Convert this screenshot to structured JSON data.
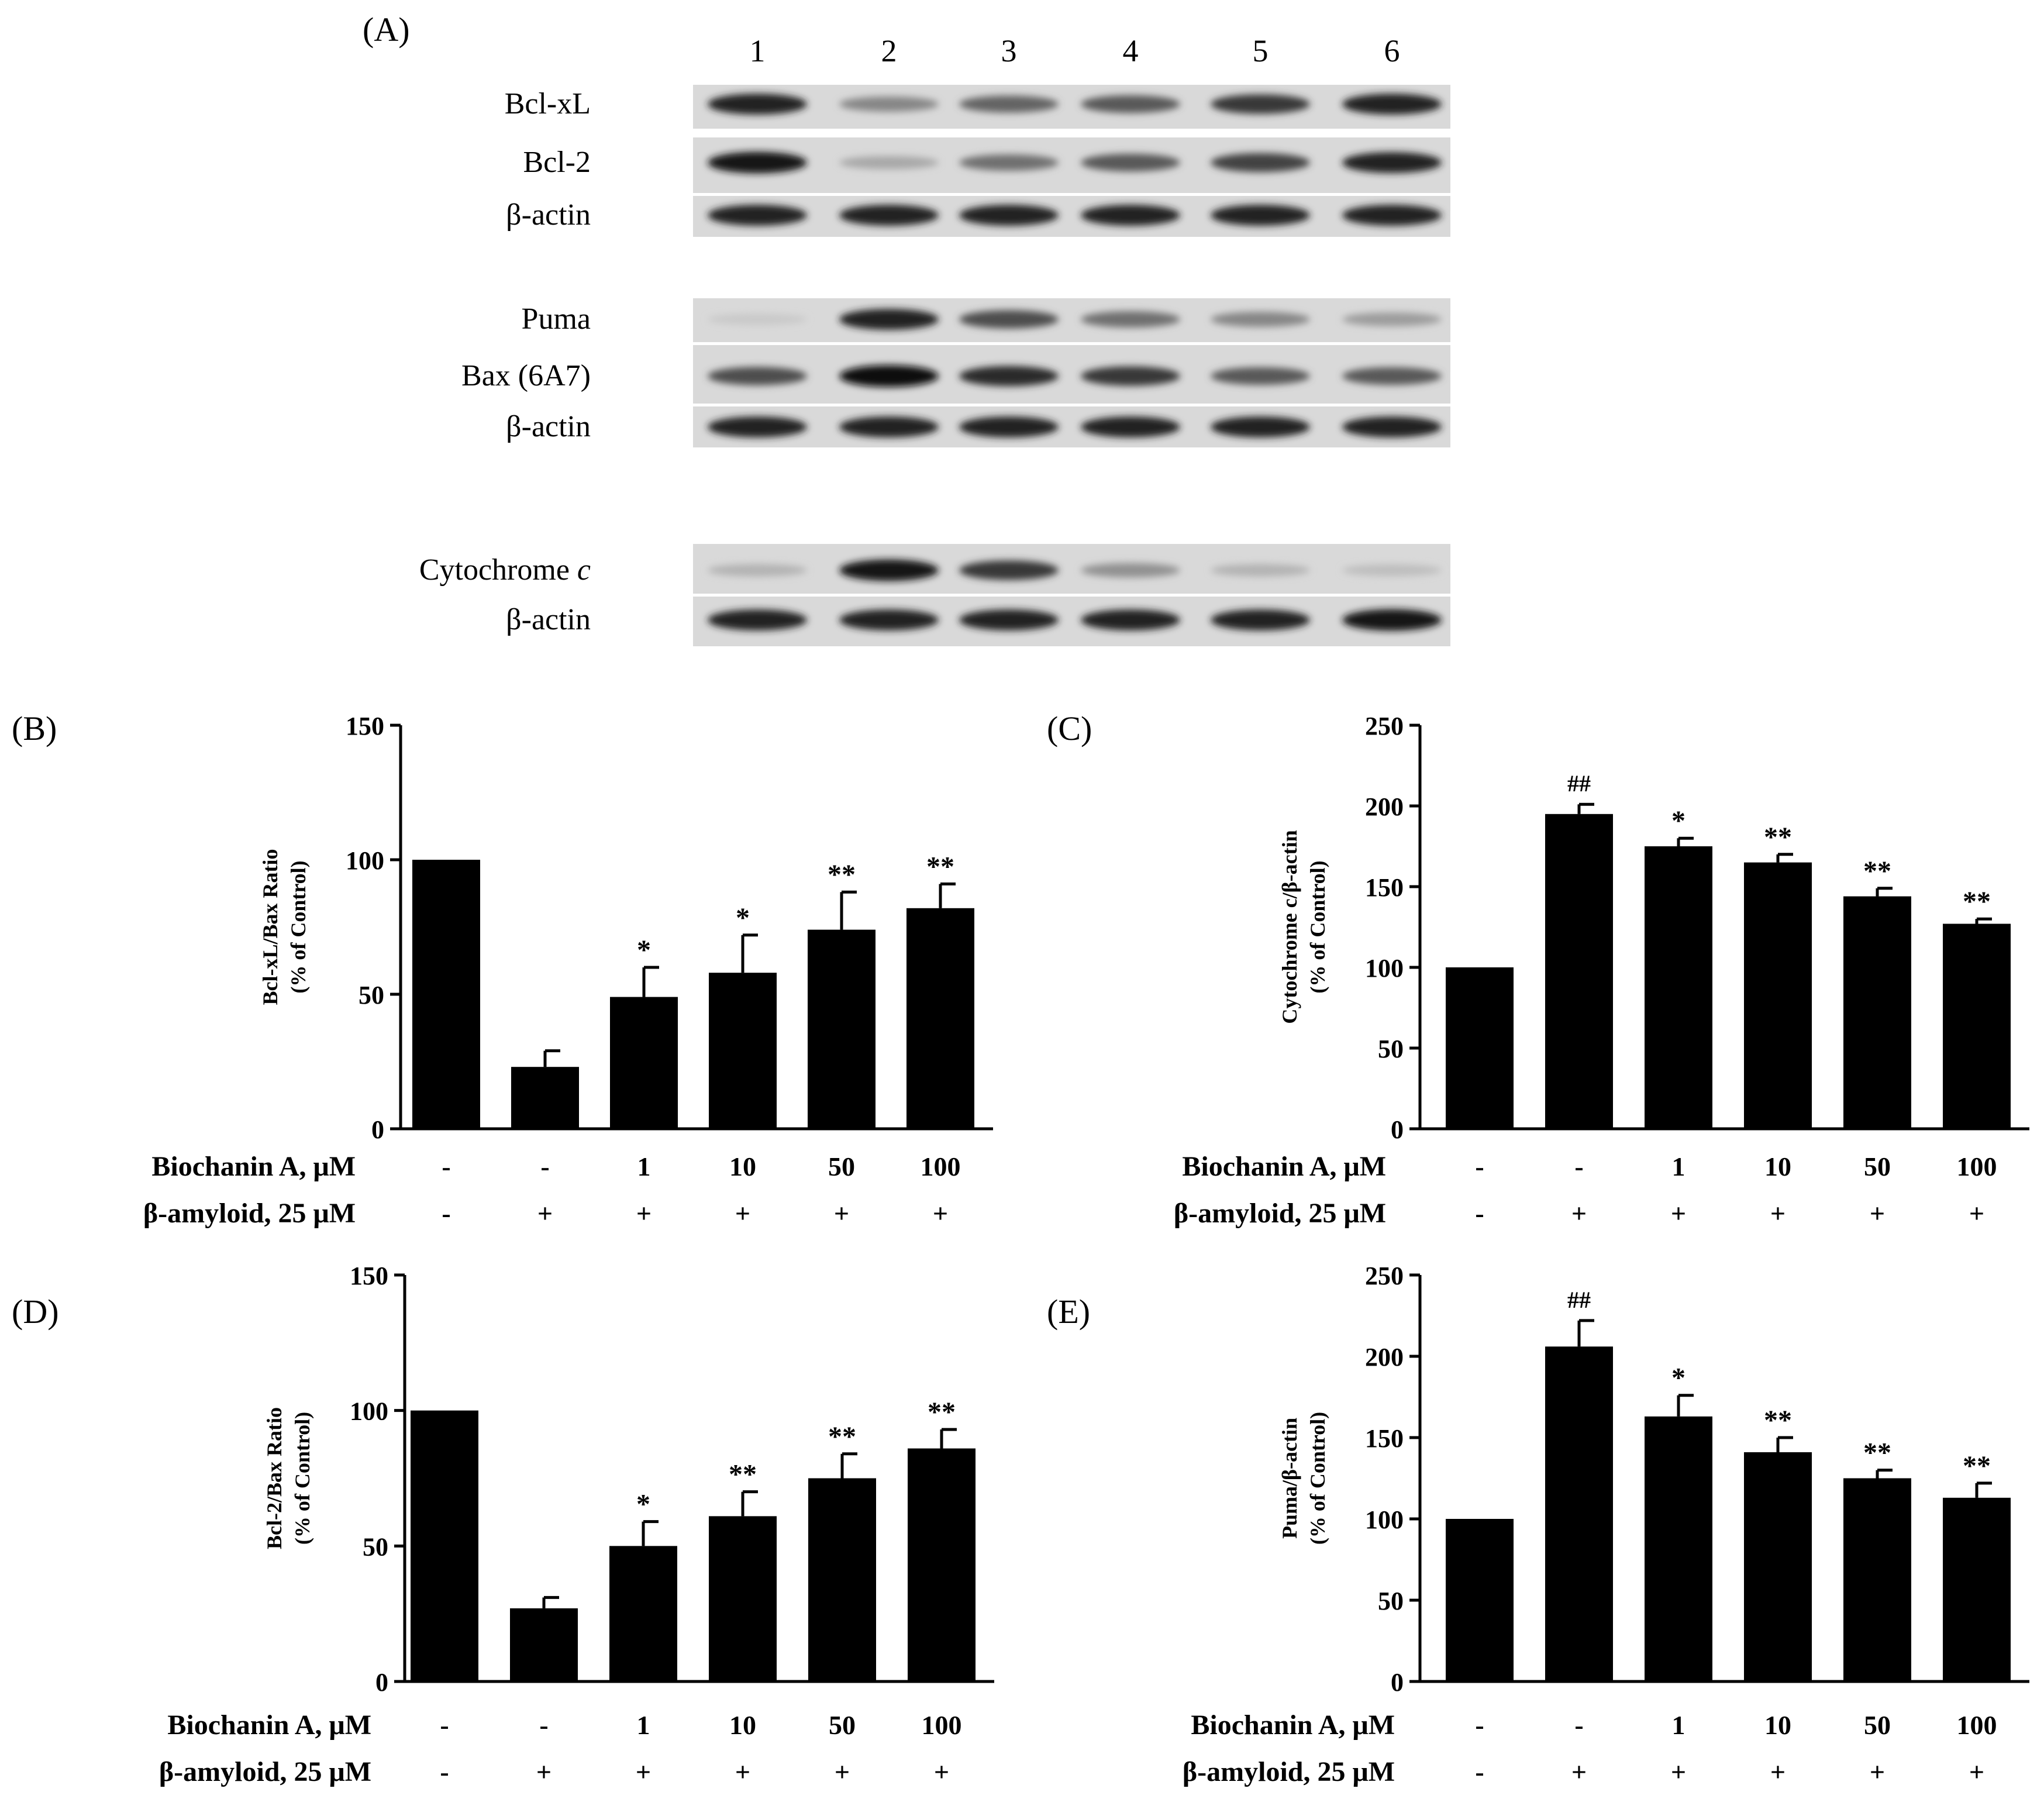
{
  "blot": {
    "panel_label": "(A)",
    "lanes": [
      "1",
      "2",
      "3",
      "4",
      "5",
      "6"
    ],
    "rows": [
      {
        "label": "Bcl-xL",
        "intensity": [
          0.9,
          0.45,
          0.6,
          0.65,
          0.8,
          0.9
        ]
      },
      {
        "label": "Bcl-2",
        "intensity": [
          0.95,
          0.3,
          0.55,
          0.65,
          0.75,
          0.9
        ]
      },
      {
        "label": "β-actin",
        "intensity": [
          0.9,
          0.9,
          0.9,
          0.9,
          0.9,
          0.9
        ]
      },
      {
        "label": "Puma",
        "intensity": [
          0.15,
          0.9,
          0.7,
          0.55,
          0.45,
          0.35
        ]
      },
      {
        "label": "Bax (6A7)",
        "intensity": [
          0.7,
          0.98,
          0.85,
          0.8,
          0.65,
          0.65
        ]
      },
      {
        "label": "β-actin",
        "intensity": [
          0.9,
          0.9,
          0.9,
          0.9,
          0.9,
          0.9
        ]
      },
      {
        "label": "Cytochrome",
        "label_italic": "c",
        "intensity": [
          0.25,
          0.95,
          0.8,
          0.4,
          0.25,
          0.2
        ]
      },
      {
        "label": "β-actin",
        "intensity": [
          0.9,
          0.9,
          0.9,
          0.9,
          0.9,
          0.95
        ]
      }
    ]
  },
  "conditions": {
    "biochanin_label": "Biochanin A, μM",
    "biochanin_values": [
      "-",
      "-",
      "1",
      "10",
      "50",
      "100"
    ],
    "amyloid_label": "β-amyloid, 25 μM",
    "amyloid_values": [
      "-",
      "+",
      "+",
      "+",
      "+",
      "+"
    ]
  },
  "chart_data": [
    {
      "panel": "(B)",
      "type": "bar",
      "ylabel_line1": "Bcl-xL/Bax Ratio",
      "ylabel_line2": "(% of Control)",
      "ylim": [
        0,
        150
      ],
      "yticks": [
        0,
        50,
        100,
        150
      ],
      "values": [
        100,
        23,
        49,
        58,
        74,
        82
      ],
      "errors": [
        0,
        6,
        11,
        14,
        14,
        9
      ],
      "marks": [
        "",
        "",
        "*",
        "*",
        "**",
        "**"
      ]
    },
    {
      "panel": "(C)",
      "type": "bar",
      "ylabel_line1": "Cytochrome c/β-actin",
      "ylabel_line2": "(% of Control)",
      "ylim": [
        0,
        250
      ],
      "yticks": [
        0,
        50,
        100,
        150,
        200,
        250
      ],
      "values": [
        100,
        195,
        175,
        165,
        144,
        127
      ],
      "errors": [
        0,
        6,
        5,
        5,
        5,
        3
      ],
      "marks": [
        "",
        "##",
        "*",
        "**",
        "**",
        "**"
      ]
    },
    {
      "panel": "(D)",
      "type": "bar",
      "ylabel_line1": "Bcl-2/Bax Ratio",
      "ylabel_line2": "(% of Control)",
      "ylim": [
        0,
        150
      ],
      "yticks": [
        0,
        50,
        100,
        150
      ],
      "values": [
        100,
        27,
        50,
        61,
        75,
        86
      ],
      "errors": [
        0,
        4,
        9,
        9,
        9,
        7
      ],
      "marks": [
        "",
        "",
        "*",
        "**",
        "**",
        "**"
      ]
    },
    {
      "panel": "(E)",
      "type": "bar",
      "ylabel_line1": "Puma/β-actin",
      "ylabel_line2": "(% of Control)",
      "ylim": [
        0,
        250
      ],
      "yticks": [
        0,
        50,
        100,
        150,
        200,
        250
      ],
      "values": [
        100,
        206,
        163,
        141,
        125,
        113
      ],
      "errors": [
        0,
        16,
        13,
        9,
        5,
        9
      ],
      "marks": [
        "",
        "##",
        "*",
        "**",
        "**",
        "**"
      ]
    }
  ]
}
